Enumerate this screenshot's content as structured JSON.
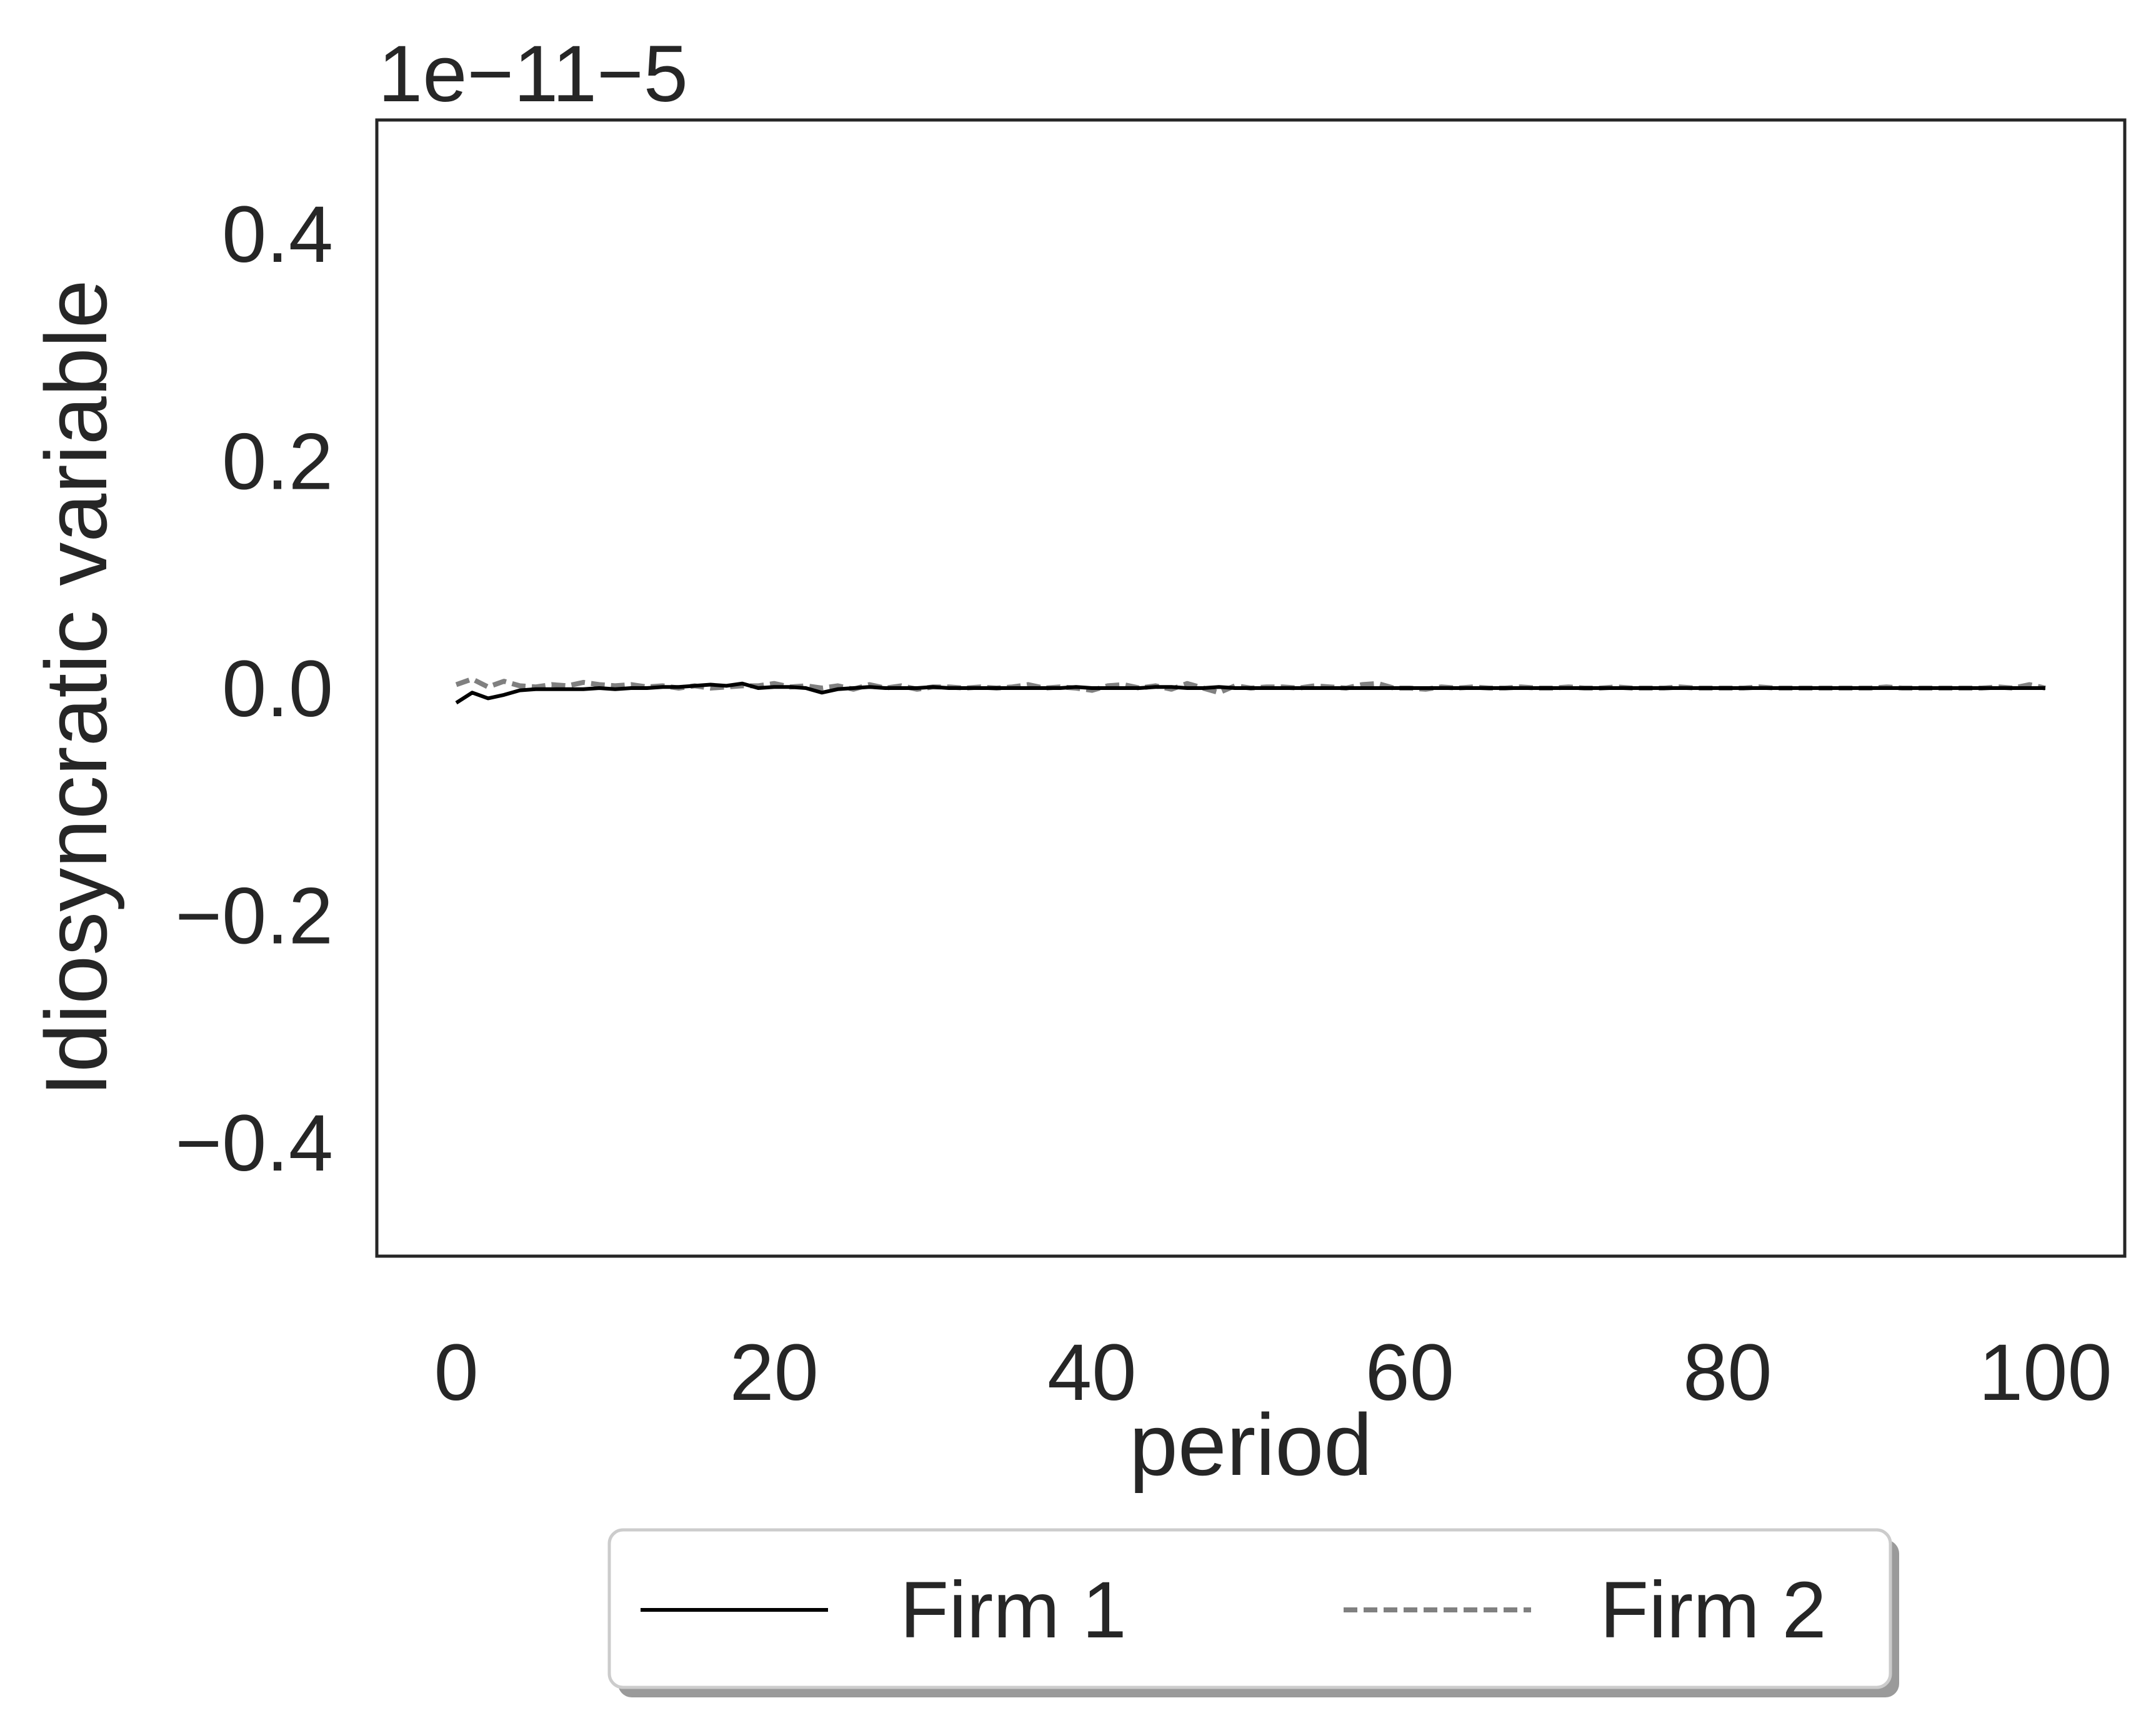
{
  "chart_data": {
    "type": "line",
    "title": "",
    "xlabel": "period",
    "ylabel": "Idiosyncratic variable",
    "offset_text": "1e−11−5",
    "xlim": [
      -5,
      105
    ],
    "ylim": [
      -0.5,
      0.5
    ],
    "xticks": [
      0,
      20,
      40,
      60,
      80,
      100
    ],
    "xtick_labels": [
      "0",
      "20",
      "40",
      "60",
      "80",
      "100"
    ],
    "yticks": [
      -0.4,
      -0.2,
      0.0,
      0.2,
      0.4
    ],
    "ytick_labels": [
      "−0.4",
      "−0.2",
      "0.0",
      "0.2",
      "0.4"
    ],
    "grid": false,
    "legend_position": "below",
    "series": [
      {
        "name": "Firm 1",
        "color": "#000000",
        "style": "solid",
        "x": [
          0,
          1,
          2,
          3,
          4,
          5,
          6,
          7,
          8,
          9,
          10,
          11,
          12,
          13,
          14,
          15,
          16,
          17,
          18,
          19,
          20,
          21,
          22,
          23,
          24,
          25,
          26,
          27,
          28,
          29,
          30,
          31,
          32,
          33,
          34,
          35,
          36,
          37,
          38,
          39,
          40,
          41,
          42,
          43,
          44,
          45,
          46,
          47,
          48,
          49,
          50,
          51,
          52,
          53,
          54,
          55,
          56,
          57,
          58,
          59,
          60,
          61,
          62,
          63,
          64,
          65,
          66,
          67,
          68,
          69,
          70,
          71,
          72,
          73,
          74,
          75,
          76,
          77,
          78,
          79,
          80,
          81,
          82,
          83,
          84,
          85,
          86,
          87,
          88,
          89,
          90,
          91,
          92,
          93,
          94,
          95,
          96,
          97,
          98,
          99,
          100
        ],
        "y": [
          -0.013,
          -0.004,
          -0.009,
          -0.006,
          -0.002,
          -0.001,
          -0.001,
          -0.001,
          -0.001,
          0.0,
          -0.001,
          0.0,
          0.0,
          0.001,
          0.001,
          0.002,
          0.003,
          0.002,
          0.004,
          0.0,
          0.001,
          0.001,
          0.0,
          -0.004,
          -0.001,
          0.0,
          0.001,
          0.0,
          0.0,
          0.0,
          0.001,
          0.0,
          0.0,
          0.0,
          0.0,
          0.0,
          0.0,
          0.0,
          0.0,
          0.001,
          0.0,
          0.0,
          0.0,
          0.0,
          0.001,
          0.001,
          0.0,
          0.0,
          0.001,
          0.0,
          0.0,
          0.0,
          0.0,
          0.0,
          0.0,
          0.0,
          0.0,
          0.0,
          0.0,
          0.0,
          0.0,
          0.0,
          0.0,
          0.0,
          0.0,
          0.0,
          0.0,
          0.0,
          0.0,
          0.0,
          0.0,
          0.0,
          0.0,
          0.0,
          0.0,
          0.0,
          0.0,
          0.0,
          0.0,
          0.0,
          0.0,
          0.0,
          0.0,
          0.0,
          0.0,
          0.0,
          0.0,
          0.0,
          0.0,
          0.0,
          0.0,
          0.0,
          0.0,
          0.0,
          0.0,
          0.0,
          0.0,
          0.0,
          0.0,
          0.0,
          0.0
        ]
      },
      {
        "name": "Firm 2",
        "color": "#808080",
        "style": "dashed",
        "x": [
          0,
          1,
          2,
          3,
          4,
          5,
          6,
          7,
          8,
          9,
          10,
          11,
          12,
          13,
          14,
          15,
          16,
          17,
          18,
          19,
          20,
          21,
          22,
          23,
          24,
          25,
          26,
          27,
          28,
          29,
          30,
          31,
          32,
          33,
          34,
          35,
          36,
          37,
          38,
          39,
          40,
          41,
          42,
          43,
          44,
          45,
          46,
          47,
          48,
          49,
          50,
          51,
          52,
          53,
          54,
          55,
          56,
          57,
          58,
          59,
          60,
          61,
          62,
          63,
          64,
          65,
          66,
          67,
          68,
          69,
          70,
          71,
          72,
          73,
          74,
          75,
          76,
          77,
          78,
          79,
          80,
          81,
          82,
          83,
          84,
          85,
          86,
          87,
          88,
          89,
          90,
          91,
          92,
          93,
          94,
          95,
          96,
          97,
          98,
          99,
          100
        ],
        "y": [
          0.003,
          0.008,
          0.001,
          0.006,
          0.002,
          0.001,
          0.003,
          0.002,
          0.005,
          0.003,
          0.002,
          0.003,
          0.001,
          0.002,
          0.0,
          0.002,
          0.0,
          0.001,
          0.002,
          0.002,
          0.004,
          0.001,
          0.002,
          0.0,
          0.002,
          -0.001,
          0.003,
          0.0,
          0.002,
          -0.001,
          0.001,
          0.001,
          0.0,
          0.001,
          0.0,
          0.001,
          0.003,
          0.0,
          0.001,
          0.0,
          -0.002,
          0.002,
          0.003,
          0.0,
          0.002,
          -0.001,
          0.004,
          0.0,
          -0.004,
          0.002,
          0.0,
          0.001,
          0.001,
          0.0,
          0.002,
          0.001,
          0.0,
          0.003,
          0.004,
          0.0,
          0.0,
          -0.001,
          0.001,
          0.0,
          0.001,
          0.0,
          0.0,
          0.001,
          0.0,
          0.0,
          0.001,
          0.0,
          0.0,
          0.001,
          0.0,
          0.0,
          0.0,
          0.001,
          0.0,
          0.0,
          0.0,
          0.0,
          0.001,
          0.0,
          0.0,
          0.0,
          0.0,
          0.0,
          0.0,
          0.0,
          0.001,
          0.0,
          0.0,
          0.0,
          0.0,
          0.0,
          0.0,
          0.001,
          0.0,
          0.003,
          0.0
        ]
      }
    ]
  }
}
